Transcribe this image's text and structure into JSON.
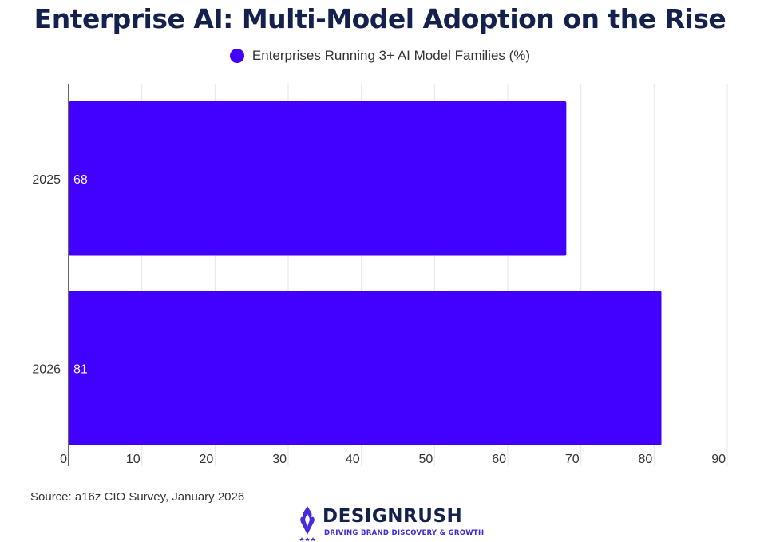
{
  "colors": {
    "bar": "#4200ff",
    "title": "#14214d",
    "grid": "#e5e7eb",
    "axis": "#333333"
  },
  "chart_data": {
    "type": "bar",
    "orientation": "horizontal",
    "title": "Enterprise AI: Multi-Model Adoption on the Rise",
    "categories": [
      "2025",
      "2026"
    ],
    "series": [
      {
        "name": "Enterprises Running 3+ AI Model Families (%)",
        "values": [
          68,
          81
        ]
      }
    ],
    "data_labels": [
      "68",
      "81"
    ],
    "xlim": [
      0,
      90
    ],
    "xticks": [
      "0",
      "10",
      "20",
      "30",
      "40",
      "50",
      "60",
      "70",
      "80",
      "90"
    ],
    "grid": true,
    "legend_position": "top-center"
  },
  "source": "Source: a16z CIO Survey, January 2026",
  "logo": {
    "icon": "designrush-flame-icon",
    "wordmark": "DESIGNRUSH",
    "tagline": "DRIVING BRAND DISCOVERY & GROWTH"
  }
}
